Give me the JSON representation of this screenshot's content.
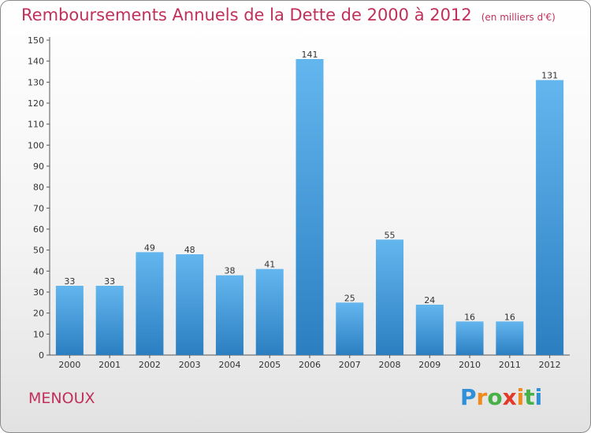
{
  "header": {
    "title": "Remboursements Annuels de la Dette de 2000 à 2012",
    "unit": "(en milliers d'€)"
  },
  "footer": {
    "commune": "MENOUX",
    "brand": [
      "P",
      "r",
      "o",
      "x",
      "i",
      "t",
      "i"
    ],
    "brand_colors": [
      "#2f8fd8",
      "#f08a1c",
      "#48b048",
      "#e23a2a",
      "#f08a1c",
      "#48b048",
      "#2f8fd8"
    ]
  },
  "colors": {
    "accent": "#c0305a",
    "bar_top": "#63b6ee",
    "bar_bottom": "#2b7fc1"
  },
  "chart_data": {
    "type": "bar",
    "categories": [
      "2000",
      "2001",
      "2002",
      "2003",
      "2004",
      "2005",
      "2006",
      "2007",
      "2008",
      "2009",
      "2010",
      "2011",
      "2012"
    ],
    "values": [
      33,
      33,
      49,
      48,
      38,
      41,
      141,
      25,
      55,
      24,
      16,
      16,
      131
    ],
    "title": "Remboursements Annuels de la Dette de 2000 à 2012",
    "subtitle": "(en milliers d'€)",
    "xlabel": "",
    "ylabel": "",
    "ylim": [
      0,
      150
    ],
    "ytick_step": 10,
    "grid": false,
    "legend": "none"
  }
}
